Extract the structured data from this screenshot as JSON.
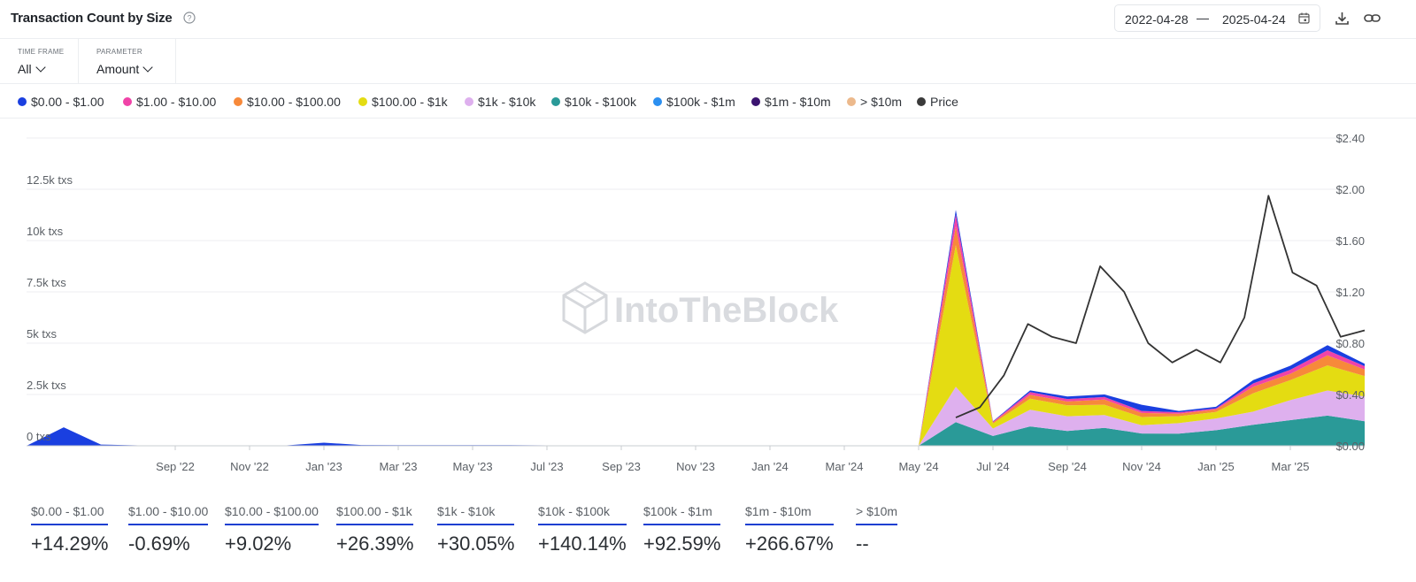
{
  "header": {
    "title": "Transaction Count by Size",
    "date_start": "2022-04-28",
    "date_sep": "—",
    "date_end": "2025-04-24"
  },
  "filters": [
    {
      "label": "TIME FRAME",
      "value": "All"
    },
    {
      "label": "PARAMETER",
      "value": "Amount"
    }
  ],
  "legend": [
    {
      "label": "$0.00 - $1.00",
      "color": "#1a3fe0"
    },
    {
      "label": "$1.00 - $10.00",
      "color": "#f043a8"
    },
    {
      "label": "$10.00 - $100.00",
      "color": "#f7893a"
    },
    {
      "label": "$100.00 - $1k",
      "color": "#e4dc12"
    },
    {
      "label": "$1k - $10k",
      "color": "#deb0ee"
    },
    {
      "label": "$10k - $100k",
      "color": "#2a9a98"
    },
    {
      "label": "$100k - $1m",
      "color": "#2b8ff0"
    },
    {
      "label": "$1m - $10m",
      "color": "#3b1470"
    },
    {
      "label": "> $10m",
      "color": "#ecb98c"
    },
    {
      "label": "Price",
      "color": "#3a3a3a"
    }
  ],
  "watermark": "IntoTheBlock",
  "chart_data": {
    "type": "area",
    "stacked": true,
    "x_ticks": [
      "Sep '22",
      "Nov '22",
      "Jan '23",
      "Mar '23",
      "May '23",
      "Jul '23",
      "Sep '23",
      "Nov '23",
      "Jan '24",
      "Mar '24",
      "May '24",
      "Jul '24",
      "Sep '24",
      "Nov '24",
      "Jan '25",
      "Mar '25"
    ],
    "y_left_ticks": [
      "0 txs",
      "2.5k txs",
      "5k txs",
      "7.5k txs",
      "10k txs",
      "12.5k txs"
    ],
    "y_left_range": [
      0,
      15000
    ],
    "y_right_ticks": [
      "$0.00",
      "$0.40",
      "$0.80",
      "$1.20",
      "$1.60",
      "$2.00",
      "$2.40"
    ],
    "y_right_range": [
      0,
      2.4
    ],
    "grid": true,
    "legend_position": "top",
    "series_order": [
      "$10k - $100k",
      "$1k - $10k",
      "$100.00 - $1k",
      "$10.00 - $100.00",
      "$1.00 - $10.00",
      "$0.00 - $1.00"
    ],
    "x_months": [
      0,
      1,
      2,
      3,
      4,
      5,
      6,
      7,
      8,
      9,
      10,
      11,
      12,
      13,
      14,
      15,
      16,
      17,
      18,
      19,
      20,
      21,
      22,
      23,
      24,
      25,
      26,
      27,
      28,
      29,
      30,
      31,
      32,
      33,
      34,
      35,
      36
    ],
    "month_labels_start": "2022-04",
    "total_txs": [
      0,
      900,
      60,
      20,
      10,
      10,
      10,
      20,
      150,
      40,
      30,
      30,
      30,
      30,
      20,
      20,
      20,
      20,
      20,
      20,
      20,
      10,
      20,
      10,
      10,
      11500,
      1200,
      2700,
      2400,
      2500,
      2000,
      1700,
      1900,
      3200,
      3900,
      4900,
      4000
    ],
    "band_share": {
      "$10k - $100k": [
        0,
        0,
        0,
        0,
        0,
        0,
        0,
        0,
        0,
        0,
        0,
        0,
        0,
        0,
        0,
        0,
        0,
        0,
        0,
        0,
        0,
        0,
        0,
        0,
        0,
        0.1,
        0.4,
        0.35,
        0.3,
        0.35,
        0.3,
        0.35,
        0.4,
        0.32,
        0.32,
        0.3,
        0.3
      ],
      "$1k - $10k": [
        0,
        0,
        0,
        0,
        0,
        0,
        0,
        0,
        0,
        0,
        0,
        0,
        0,
        0,
        0,
        0,
        0,
        0,
        0,
        0,
        0,
        0,
        0,
        0,
        0,
        0.15,
        0.3,
        0.3,
        0.3,
        0.25,
        0.2,
        0.3,
        0.3,
        0.2,
        0.25,
        0.25,
        0.3
      ],
      "$100.00 - $1k": [
        0,
        0,
        0,
        0,
        0,
        0,
        0,
        0,
        0,
        0,
        0,
        0,
        0,
        0,
        0,
        0,
        0,
        0,
        0,
        0,
        0,
        0,
        0,
        0,
        0,
        0.6,
        0.2,
        0.2,
        0.22,
        0.2,
        0.2,
        0.2,
        0.17,
        0.28,
        0.25,
        0.25,
        0.25
      ],
      "$10.00 - $100.00": [
        0,
        0,
        0,
        0,
        0,
        0,
        0,
        0,
        0,
        0,
        0,
        0,
        0,
        0,
        0,
        0,
        0,
        0,
        0,
        0,
        0,
        0,
        0,
        0,
        0,
        0.08,
        0.05,
        0.07,
        0.08,
        0.1,
        0.1,
        0.07,
        0.06,
        0.1,
        0.08,
        0.1,
        0.08
      ],
      "$1.00 - $10.00": [
        0,
        0,
        0,
        0,
        0,
        0,
        0,
        0,
        0,
        0,
        0,
        0,
        0,
        0,
        0,
        0,
        0,
        0,
        0,
        0,
        0,
        0,
        0,
        0,
        0,
        0.05,
        0.03,
        0.05,
        0.05,
        0.05,
        0.05,
        0.04,
        0.03,
        0.05,
        0.05,
        0.05,
        0.04
      ],
      "$0.00 - $1.00": [
        1,
        1,
        1,
        1,
        1,
        1,
        1,
        1,
        1,
        1,
        1,
        1,
        1,
        1,
        1,
        1,
        1,
        1,
        1,
        1,
        1,
        1,
        1,
        1,
        1,
        0.02,
        0.02,
        0.03,
        0.05,
        0.05,
        0.15,
        0.04,
        0.04,
        0.05,
        0.05,
        0.05,
        0.03
      ]
    },
    "price_series": {
      "name": "Price",
      "start_month_index": 25,
      "values": [
        0.22,
        0.3,
        0.55,
        0.95,
        0.85,
        0.8,
        1.4,
        1.2,
        0.8,
        0.65,
        0.75,
        0.65,
        1.0,
        1.95,
        1.35,
        1.25,
        0.85,
        0.9
      ]
    }
  },
  "stats": [
    {
      "label": "$0.00 - $1.00",
      "value": "+14.29%"
    },
    {
      "label": "$1.00 - $10.00",
      "value": "-0.69%"
    },
    {
      "label": "$10.00 - $100.00",
      "value": "+9.02%"
    },
    {
      "label": "$100.00 - $1k",
      "value": "+26.39%"
    },
    {
      "label": "$1k - $10k",
      "value": "+30.05%"
    },
    {
      "label": "$10k - $100k",
      "value": "+140.14%"
    },
    {
      "label": "$100k - $1m",
      "value": "+92.59%"
    },
    {
      "label": "$1m - $10m",
      "value": "+266.67%"
    },
    {
      "label": "> $10m",
      "value": "--"
    }
  ]
}
